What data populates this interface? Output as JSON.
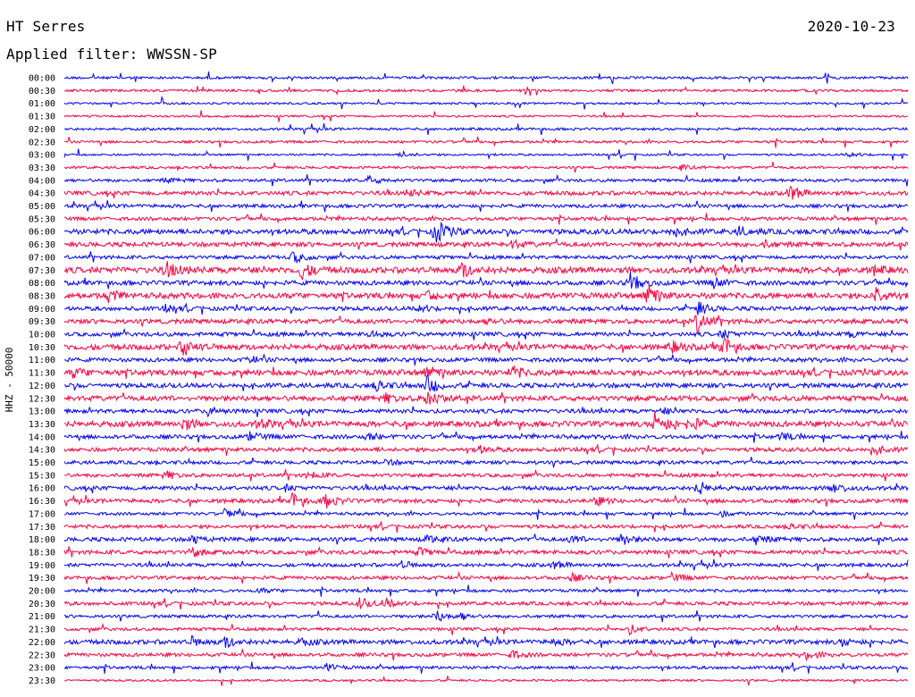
{
  "header": {
    "station": "HT Serres",
    "date": "2020-10-23",
    "filter_label": "Applied filter: WWSSN-SP"
  },
  "chart_data": {
    "type": "line",
    "title": "HT Serres",
    "subtitle": "Applied filter: WWSSN-SP",
    "ylabel": "HHZ - 50000",
    "xlabel": "",
    "grid": false,
    "legend": "none",
    "colors": [
      "#0000ff",
      "#ff0040"
    ],
    "rows": [
      {
        "label": "00:00",
        "amp": 0.25,
        "events": []
      },
      {
        "label": "00:30",
        "amp": 0.25,
        "events": []
      },
      {
        "label": "01:00",
        "amp": 0.2,
        "events": []
      },
      {
        "label": "01:30",
        "amp": 0.2,
        "events": []
      },
      {
        "label": "02:00",
        "amp": 0.25,
        "events": []
      },
      {
        "label": "02:30",
        "amp": 0.25,
        "events": []
      },
      {
        "label": "03:00",
        "amp": 0.2,
        "events": [
          {
            "t": 0.4,
            "a": 0.6
          },
          {
            "t": 0.93,
            "a": 0.5
          }
        ]
      },
      {
        "label": "03:30",
        "amp": 0.25,
        "events": [
          {
            "t": 0.73,
            "a": 0.5
          }
        ]
      },
      {
        "label": "04:00",
        "amp": 0.3,
        "events": [
          {
            "t": 0.36,
            "a": 0.9
          },
          {
            "t": 0.12,
            "a": 0.4
          }
        ]
      },
      {
        "label": "04:30",
        "amp": 0.4,
        "events": [
          {
            "t": 0.86,
            "a": 1.6
          },
          {
            "t": 0.41,
            "a": 0.5
          }
        ]
      },
      {
        "label": "05:00",
        "amp": 0.35,
        "events": []
      },
      {
        "label": "05:30",
        "amp": 0.35,
        "events": []
      },
      {
        "label": "06:00",
        "amp": 0.5,
        "events": [
          {
            "t": 0.44,
            "a": 2.4
          },
          {
            "t": 0.72,
            "a": 0.9
          },
          {
            "t": 0.8,
            "a": 0.8
          }
        ]
      },
      {
        "label": "06:30",
        "amp": 0.45,
        "events": [
          {
            "t": 0.53,
            "a": 0.8
          },
          {
            "t": 0.83,
            "a": 0.6
          }
        ]
      },
      {
        "label": "07:00",
        "amp": 0.35,
        "events": [
          {
            "t": 0.27,
            "a": 1.2
          }
        ]
      },
      {
        "label": "07:30",
        "amp": 0.6,
        "events": [
          {
            "t": 0.12,
            "a": 1.6
          },
          {
            "t": 0.28,
            "a": 1.8
          },
          {
            "t": 0.47,
            "a": 1.6
          },
          {
            "t": 0.96,
            "a": 0.7
          }
        ]
      },
      {
        "label": "08:00",
        "amp": 0.45,
        "events": [
          {
            "t": 0.67,
            "a": 2.2
          },
          {
            "t": 0.77,
            "a": 1.0
          }
        ]
      },
      {
        "label": "08:30",
        "amp": 0.55,
        "events": [
          {
            "t": 0.05,
            "a": 1.3
          },
          {
            "t": 0.69,
            "a": 2.5
          },
          {
            "t": 0.96,
            "a": 2.0
          },
          {
            "t": 0.43,
            "a": 0.8
          }
        ]
      },
      {
        "label": "09:00",
        "amp": 0.4,
        "events": [
          {
            "t": 0.12,
            "a": 0.6
          },
          {
            "t": 0.42,
            "a": 0.7
          },
          {
            "t": 0.75,
            "a": 1.4
          }
        ]
      },
      {
        "label": "09:30",
        "amp": 0.45,
        "events": [
          {
            "t": 0.75,
            "a": 2.4
          },
          {
            "t": 0.5,
            "a": 0.6
          }
        ]
      },
      {
        "label": "10:00",
        "amp": 0.4,
        "events": [
          {
            "t": 0.78,
            "a": 0.9
          },
          {
            "t": 0.36,
            "a": 0.6
          },
          {
            "t": 0.93,
            "a": 0.5
          }
        ]
      },
      {
        "label": "10:30",
        "amp": 0.55,
        "events": [
          {
            "t": 0.14,
            "a": 1.8
          },
          {
            "t": 0.78,
            "a": 2.0
          },
          {
            "t": 0.72,
            "a": 1.1
          }
        ]
      },
      {
        "label": "11:00",
        "amp": 0.4,
        "events": [
          {
            "t": 0.22,
            "a": 0.6
          }
        ]
      },
      {
        "label": "11:30",
        "amp": 0.55,
        "events": [
          {
            "t": 0.43,
            "a": 1.3
          },
          {
            "t": 0.53,
            "a": 1.2
          },
          {
            "t": 0.01,
            "a": 0.9
          }
        ]
      },
      {
        "label": "12:00",
        "amp": 0.45,
        "events": [
          {
            "t": 0.37,
            "a": 1.0
          },
          {
            "t": 0.43,
            "a": 1.8
          }
        ]
      },
      {
        "label": "12:30",
        "amp": 0.5,
        "events": [
          {
            "t": 0.43,
            "a": 2.0
          },
          {
            "t": 0.38,
            "a": 0.9
          }
        ]
      },
      {
        "label": "13:00",
        "amp": 0.4,
        "events": [
          {
            "t": 0.17,
            "a": 0.8
          },
          {
            "t": 0.71,
            "a": 0.5
          }
        ]
      },
      {
        "label": "13:30",
        "amp": 0.55,
        "events": [
          {
            "t": 0.14,
            "a": 1.2
          },
          {
            "t": 0.23,
            "a": 0.9
          },
          {
            "t": 0.7,
            "a": 2.4
          },
          {
            "t": 0.74,
            "a": 1.5
          }
        ]
      },
      {
        "label": "14:00",
        "amp": 0.4,
        "events": [
          {
            "t": 0.22,
            "a": 1.0
          },
          {
            "t": 0.36,
            "a": 0.7
          },
          {
            "t": 0.85,
            "a": 0.7
          }
        ]
      },
      {
        "label": "14:30",
        "amp": 0.4,
        "events": [
          {
            "t": 0.49,
            "a": 0.8
          },
          {
            "t": 0.96,
            "a": 0.9
          }
        ]
      },
      {
        "label": "15:00",
        "amp": 0.35,
        "events": [
          {
            "t": 0.38,
            "a": 0.5
          }
        ]
      },
      {
        "label": "15:30",
        "amp": 0.35,
        "events": [
          {
            "t": 0.12,
            "a": 0.8
          },
          {
            "t": 0.29,
            "a": 0.8
          }
        ]
      },
      {
        "label": "16:00",
        "amp": 0.4,
        "events": [
          {
            "t": 0.75,
            "a": 1.6
          },
          {
            "t": 0.91,
            "a": 1.2
          },
          {
            "t": 0.26,
            "a": 0.6
          }
        ]
      },
      {
        "label": "16:30",
        "amp": 0.4,
        "events": [
          {
            "t": 0.27,
            "a": 1.5
          },
          {
            "t": 0.31,
            "a": 1.3
          },
          {
            "t": 0.63,
            "a": 0.8
          }
        ]
      },
      {
        "label": "17:00",
        "amp": 0.3,
        "events": [
          {
            "t": 0.19,
            "a": 1.2
          },
          {
            "t": 0.78,
            "a": 0.5
          }
        ]
      },
      {
        "label": "17:30",
        "amp": 0.35,
        "events": [
          {
            "t": 0.86,
            "a": 0.5
          }
        ]
      },
      {
        "label": "18:00",
        "amp": 0.4,
        "events": [
          {
            "t": 0.15,
            "a": 0.8
          },
          {
            "t": 0.43,
            "a": 0.7
          },
          {
            "t": 0.6,
            "a": 0.8
          },
          {
            "t": 0.66,
            "a": 1.1
          },
          {
            "t": 0.82,
            "a": 0.9
          }
        ]
      },
      {
        "label": "18:30",
        "amp": 0.4,
        "events": [
          {
            "t": 0.15,
            "a": 1.0
          },
          {
            "t": 0.42,
            "a": 0.8
          }
        ]
      },
      {
        "label": "19:00",
        "amp": 0.35,
        "events": [
          {
            "t": 0.4,
            "a": 0.7
          },
          {
            "t": 0.58,
            "a": 0.7
          }
        ]
      },
      {
        "label": "19:30",
        "amp": 0.35,
        "events": [
          {
            "t": 0.6,
            "a": 0.8
          },
          {
            "t": 0.72,
            "a": 0.8
          }
        ]
      },
      {
        "label": "20:00",
        "amp": 0.3,
        "events": [
          {
            "t": 0.23,
            "a": 0.5
          }
        ]
      },
      {
        "label": "20:30",
        "amp": 0.35,
        "events": [
          {
            "t": 0.35,
            "a": 1.1
          },
          {
            "t": 0.38,
            "a": 0.9
          }
        ]
      },
      {
        "label": "21:00",
        "amp": 0.3,
        "events": [
          {
            "t": 0.44,
            "a": 1.2
          },
          {
            "t": 0.47,
            "a": 0.6
          }
        ]
      },
      {
        "label": "21:30",
        "amp": 0.3,
        "events": [
          {
            "t": 0.67,
            "a": 0.9
          }
        ]
      },
      {
        "label": "22:00",
        "amp": 0.45,
        "events": [
          {
            "t": 0.15,
            "a": 0.9
          },
          {
            "t": 0.19,
            "a": 1.1
          },
          {
            "t": 0.28,
            "a": 0.7
          },
          {
            "t": 0.58,
            "a": 0.6
          },
          {
            "t": 0.92,
            "a": 0.7
          }
        ]
      },
      {
        "label": "22:30",
        "amp": 0.35,
        "events": [
          {
            "t": 0.53,
            "a": 0.9
          },
          {
            "t": 0.88,
            "a": 0.9
          }
        ]
      },
      {
        "label": "23:00",
        "amp": 0.3,
        "events": [
          {
            "t": 0.31,
            "a": 0.8
          }
        ]
      },
      {
        "label": "23:30",
        "amp": 0.2,
        "events": []
      }
    ]
  }
}
